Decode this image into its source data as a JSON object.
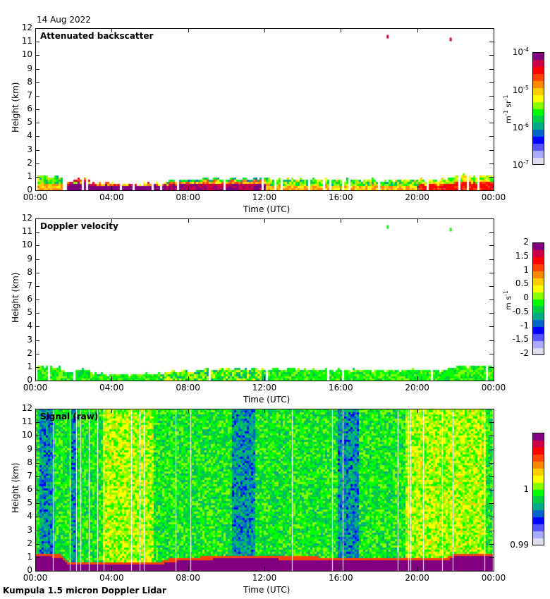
{
  "header": {
    "date": "14 Aug 2022"
  },
  "footer": {
    "instrument": "Kumpula 1.5 micron Doppler Lidar"
  },
  "colors": {
    "colormap": [
      "#ddddee",
      "#aaaaff",
      "#5555ff",
      "#0000ff",
      "#0066cc",
      "#00aa88",
      "#00cc44",
      "#00ff00",
      "#88ff00",
      "#ffff00",
      "#ffcc00",
      "#ff8800",
      "#ff4400",
      "#ff0000",
      "#cc0044",
      "#800080"
    ]
  },
  "chart_data": [
    {
      "type": "heatmap",
      "title": "Attenuated backscatter",
      "xlabel": "Time (UTC)",
      "ylabel": "Height (km)",
      "xlim": [
        0,
        24
      ],
      "ylim": [
        0,
        12
      ],
      "x_ticks": [
        "00:00",
        "04:00",
        "08:00",
        "12:00",
        "16:00",
        "20:00",
        "00:00"
      ],
      "y_ticks": [
        "0",
        "1",
        "2",
        "3",
        "4",
        "5",
        "6",
        "7",
        "8",
        "9",
        "10",
        "11",
        "12"
      ],
      "colorbar": {
        "label": "m-1 sr-1",
        "scale": "log",
        "range": [
          1e-07,
          0.0001
        ],
        "ticks": [
          "10-7",
          "10-6",
          "10-5",
          "10-4"
        ]
      },
      "profile_top_km": [
        [
          0,
          1.0
        ],
        [
          1.3,
          0.9
        ],
        [
          1.5,
          0.5
        ],
        [
          2.5,
          0.8
        ],
        [
          3,
          0.4
        ],
        [
          6.7,
          0.4
        ],
        [
          7,
          0.6
        ],
        [
          9.5,
          0.8
        ],
        [
          12,
          0.8
        ],
        [
          16,
          0.7
        ],
        [
          21.5,
          0.7
        ],
        [
          22,
          1.0
        ],
        [
          24,
          1.0
        ]
      ],
      "features": [
        {
          "time_h": 18.4,
          "height_km": 11.5,
          "level": "high"
        },
        {
          "time_h": 21.7,
          "height_km": 11.3,
          "level": "high"
        }
      ]
    },
    {
      "type": "heatmap",
      "title": "Doppler velocity",
      "xlabel": "Time (UTC)",
      "ylabel": "Height (km)",
      "xlim": [
        0,
        24
      ],
      "ylim": [
        0,
        12
      ],
      "x_ticks": [
        "00:00",
        "04:00",
        "08:00",
        "12:00",
        "16:00",
        "20:00",
        "00:00"
      ],
      "y_ticks": [
        "0",
        "1",
        "2",
        "3",
        "4",
        "5",
        "6",
        "7",
        "8",
        "9",
        "10",
        "11",
        "12"
      ],
      "colorbar": {
        "label": "m s-1",
        "scale": "linear",
        "range": [
          -2,
          2
        ],
        "ticks": [
          "2",
          "1.5",
          "1",
          "0.5",
          "0",
          "-0.5",
          "-1",
          "-1.5",
          "-2"
        ]
      },
      "profile_top_km": [
        [
          0,
          1.0
        ],
        [
          1.3,
          0.9
        ],
        [
          1.5,
          0.5
        ],
        [
          2.5,
          0.8
        ],
        [
          3,
          0.4
        ],
        [
          6.7,
          0.4
        ],
        [
          7,
          0.6
        ],
        [
          9.5,
          0.8
        ],
        [
          12,
          0.8
        ],
        [
          16,
          0.7
        ],
        [
          21.5,
          0.7
        ],
        [
          22,
          1.0
        ],
        [
          24,
          1.0
        ]
      ],
      "features": [
        {
          "time_h": 18.4,
          "height_km": 11.5,
          "level": "zero"
        },
        {
          "time_h": 21.7,
          "height_km": 11.3,
          "level": "zero"
        }
      ]
    },
    {
      "type": "heatmap",
      "title": "Signal (raw)",
      "xlabel": "Time (UTC)",
      "ylabel": "Height (km)",
      "xlim": [
        0,
        24
      ],
      "ylim": [
        0,
        12
      ],
      "x_ticks": [
        "00:00",
        "04:00",
        "08:00",
        "12:00",
        "16:00",
        "20:00",
        "00:00"
      ],
      "y_ticks": [
        "0",
        "1",
        "2",
        "3",
        "4",
        "5",
        "6",
        "7",
        "8",
        "9",
        "10",
        "11",
        "12"
      ],
      "colorbar": {
        "label": "",
        "scale": "linear",
        "range": [
          0.99,
          1.01
        ],
        "ticks": [
          "1",
          "0.99"
        ]
      },
      "boundary_layer_top_km": [
        [
          0,
          1.0
        ],
        [
          1.3,
          0.9
        ],
        [
          1.6,
          0.4
        ],
        [
          3,
          0.4
        ],
        [
          6.5,
          0.4
        ],
        [
          7,
          0.6
        ],
        [
          9.5,
          0.8
        ],
        [
          12,
          0.8
        ],
        [
          16,
          0.7
        ],
        [
          21.5,
          0.7
        ],
        [
          22,
          1.0
        ],
        [
          24,
          1.0
        ]
      ]
    }
  ]
}
